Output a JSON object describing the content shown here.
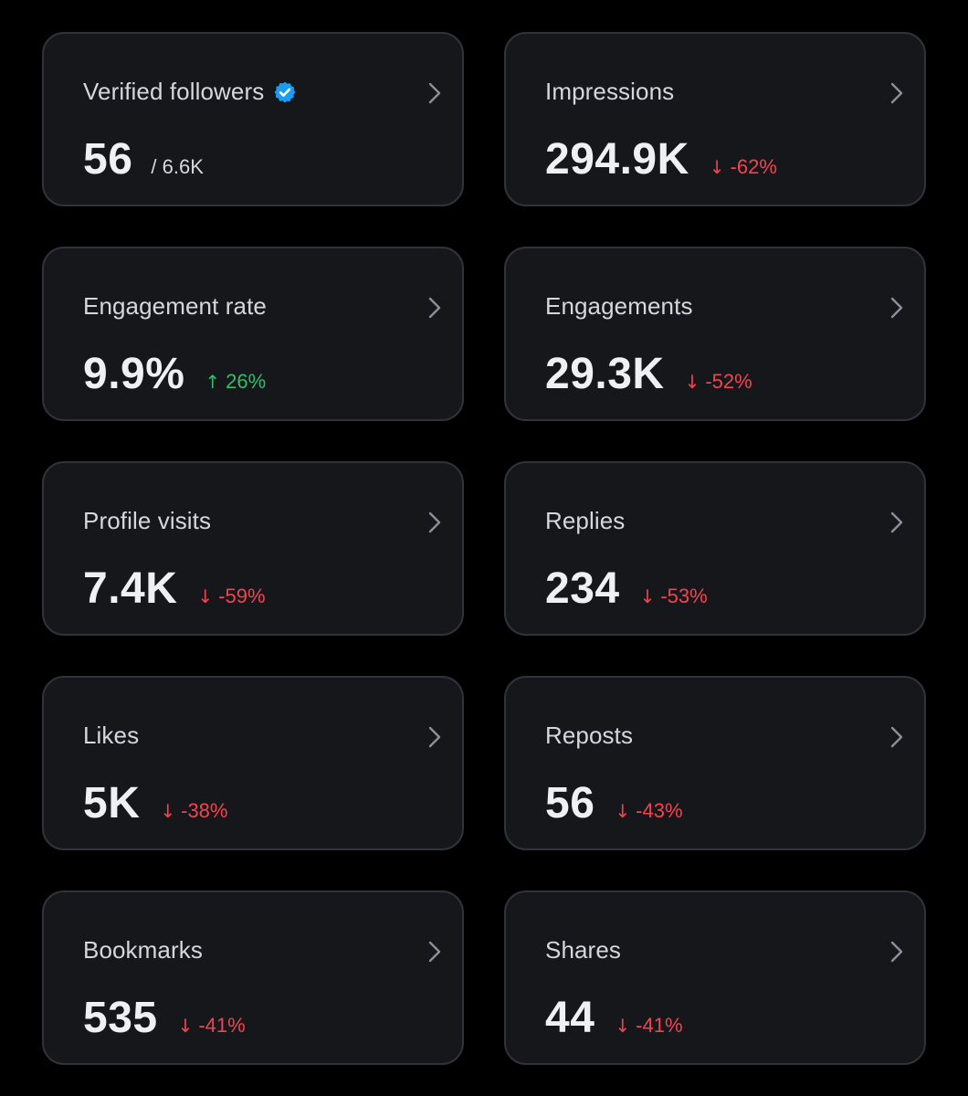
{
  "colors": {
    "background": "#000000",
    "card_background": "#16171b",
    "card_border": "#30333a",
    "negative": "#f4434f",
    "positive": "#2fbf6c",
    "verified_badge": "#1d9bf0"
  },
  "cards": [
    {
      "label": "Verified followers",
      "value": "56",
      "total": "/ 6.6K",
      "badge_icon": "verified-badge-icon"
    },
    {
      "label": "Impressions",
      "value": "294.9K",
      "change": "-62%",
      "direction": "down"
    },
    {
      "label": "Engagement rate",
      "value": "9.9%",
      "change": "26%",
      "direction": "up"
    },
    {
      "label": "Engagements",
      "value": "29.3K",
      "change": "-52%",
      "direction": "down"
    },
    {
      "label": "Profile visits",
      "value": "7.4K",
      "change": "-59%",
      "direction": "down"
    },
    {
      "label": "Replies",
      "value": "234",
      "change": "-53%",
      "direction": "down"
    },
    {
      "label": "Likes",
      "value": "5K",
      "change": "-38%",
      "direction": "down"
    },
    {
      "label": "Reposts",
      "value": "56",
      "change": "-43%",
      "direction": "down"
    },
    {
      "label": "Bookmarks",
      "value": "535",
      "change": "-41%",
      "direction": "down"
    },
    {
      "label": "Shares",
      "value": "44",
      "change": "-41%",
      "direction": "down"
    }
  ]
}
